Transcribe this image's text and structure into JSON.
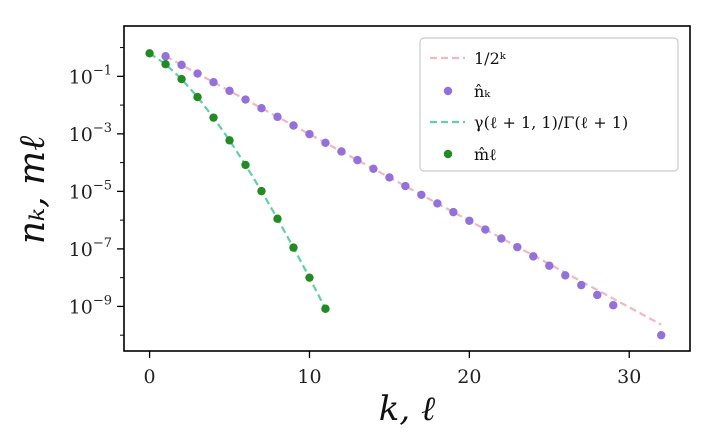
{
  "chart_data": {
    "type": "scatter",
    "title": "",
    "xlabel": "k, ℓ",
    "ylabel": "nₖ, mℓ",
    "xlim": [
      -1.6,
      33.8
    ],
    "ylim_log10": [
      -10.55,
      0.75
    ],
    "y_scale": "log",
    "grid": false,
    "legend_position": "top-right",
    "x_ticks": [
      0,
      10,
      20,
      30
    ],
    "y_ticks": [
      {
        "base": "10",
        "exp": "−1",
        "log10": -1
      },
      {
        "base": "10",
        "exp": "−3",
        "log10": -3
      },
      {
        "base": "10",
        "exp": "−5",
        "log10": -5
      },
      {
        "base": "10",
        "exp": "−7",
        "log10": -7
      },
      {
        "base": "10",
        "exp": "−9",
        "log10": -9
      }
    ],
    "series": [
      {
        "name": "1/2ᵏ",
        "kind": "dashed-line",
        "color": "#f4b6c2",
        "x": [
          1,
          32
        ],
        "y": [
          0.5,
          2.3283e-10
        ]
      },
      {
        "name": "n̂ₖ",
        "kind": "points",
        "color": "#9370db",
        "x": [
          1,
          2,
          3,
          4,
          5,
          6,
          7,
          8,
          9,
          10,
          11,
          12,
          13,
          14,
          15,
          16,
          17,
          18,
          19,
          20,
          21,
          22,
          23,
          24,
          25,
          26,
          27,
          28,
          29,
          32
        ],
        "y": [
          0.5,
          0.25,
          0.125,
          0.0625,
          0.03125,
          0.0156,
          0.0078,
          0.0039,
          0.00195,
          0.000977,
          0.000488,
          0.000244,
          0.000122,
          6.1e-05,
          3.05e-05,
          1.53e-05,
          7.6e-06,
          3.8e-06,
          1.9e-06,
          9.5e-07,
          4.7e-07,
          2.3e-07,
          1.15e-07,
          5.5e-08,
          2.6e-08,
          1.2e-08,
          5.5e-09,
          2.5e-09,
          1.1e-09,
          1e-10
        ]
      },
      {
        "name": "γ(ℓ + 1, 1)/Γ(ℓ + 1)",
        "kind": "dashed-line",
        "color": "#5fcfae",
        "x": [
          0,
          1,
          2,
          3,
          4,
          5,
          6,
          7,
          8,
          9,
          10,
          11
        ],
        "y": [
          0.632,
          0.264,
          0.0803,
          0.019,
          0.00366,
          0.000594,
          8.32e-05,
          1.02e-05,
          1.12e-06,
          1.11e-07,
          1e-08,
          8.3e-10
        ]
      },
      {
        "name": "m̂ℓ",
        "kind": "points",
        "color": "#228b22",
        "x": [
          0,
          1,
          2,
          3,
          4,
          5,
          6,
          7,
          8,
          9,
          10,
          11
        ],
        "y": [
          0.632,
          0.264,
          0.0803,
          0.019,
          0.00366,
          0.000594,
          8.32e-05,
          1.02e-05,
          1.12e-06,
          1.11e-07,
          1e-08,
          8.3e-10
        ]
      }
    ]
  }
}
